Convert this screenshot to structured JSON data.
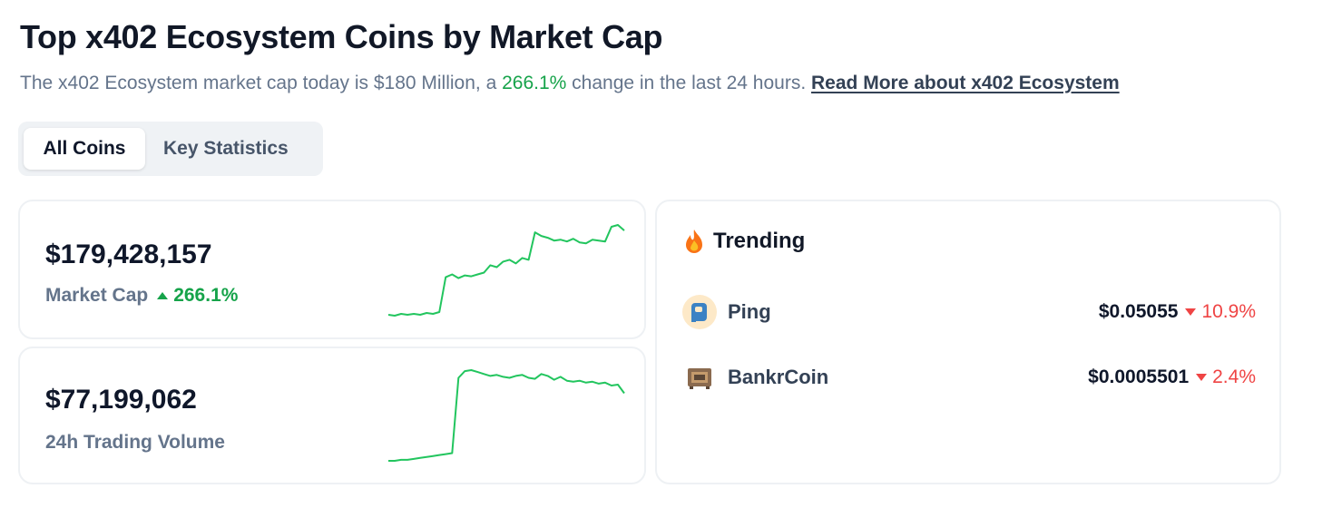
{
  "header": {
    "title": "Top x402 Ecosystem Coins by Market Cap",
    "subtitle_pre": "The x402 Ecosystem market cap today is $180 Million, a ",
    "subtitle_change": "266.1%",
    "subtitle_post": " change in the last 24 hours. ",
    "read_more": "Read More about x402 Ecosystem"
  },
  "tabs": [
    {
      "label": "All Coins",
      "active": true
    },
    {
      "label": "Key Statistics",
      "active": false
    }
  ],
  "stats": {
    "market_cap": {
      "value": "$179,428,157",
      "label": "Market Cap",
      "change": "266.1%",
      "direction": "up"
    },
    "volume": {
      "value": "$77,199,062",
      "label": "24h Trading Volume"
    }
  },
  "trending": {
    "title": "Trending",
    "icon": "fire-icon",
    "coins": [
      {
        "name": "Ping",
        "price": "$0.05055",
        "change": "10.9%",
        "direction": "down",
        "icon": "ping-logo-icon"
      },
      {
        "name": "BankrCoin",
        "price": "$0.0005501",
        "change": "2.4%",
        "direction": "down",
        "icon": "bankrcoin-logo-icon"
      }
    ]
  },
  "colors": {
    "positive": "#16a34a",
    "negative": "#ef4444",
    "sparkline": "#22c55e"
  },
  "chart_data": [
    {
      "type": "line",
      "series": [
        {
          "values": [
            4,
            3,
            5,
            4,
            5,
            4,
            6,
            5,
            7,
            45,
            48,
            44,
            47,
            46,
            48,
            50,
            58,
            56,
            62,
            64,
            60,
            66,
            64,
            94,
            90,
            88,
            85,
            86,
            84,
            87,
            83,
            82,
            86,
            85,
            84,
            100,
            102,
            96
          ]
        }
      ]
    },
    {
      "type": "line",
      "series": [
        {
          "values": [
            2,
            2,
            3,
            3,
            4,
            5,
            6,
            7,
            8,
            9,
            10,
            88,
            95,
            96,
            94,
            92,
            90,
            91,
            89,
            88,
            90,
            91,
            88,
            87,
            92,
            90,
            86,
            89,
            85,
            84,
            85,
            83,
            84,
            82,
            83,
            80,
            81,
            72
          ]
        }
      ]
    }
  ]
}
